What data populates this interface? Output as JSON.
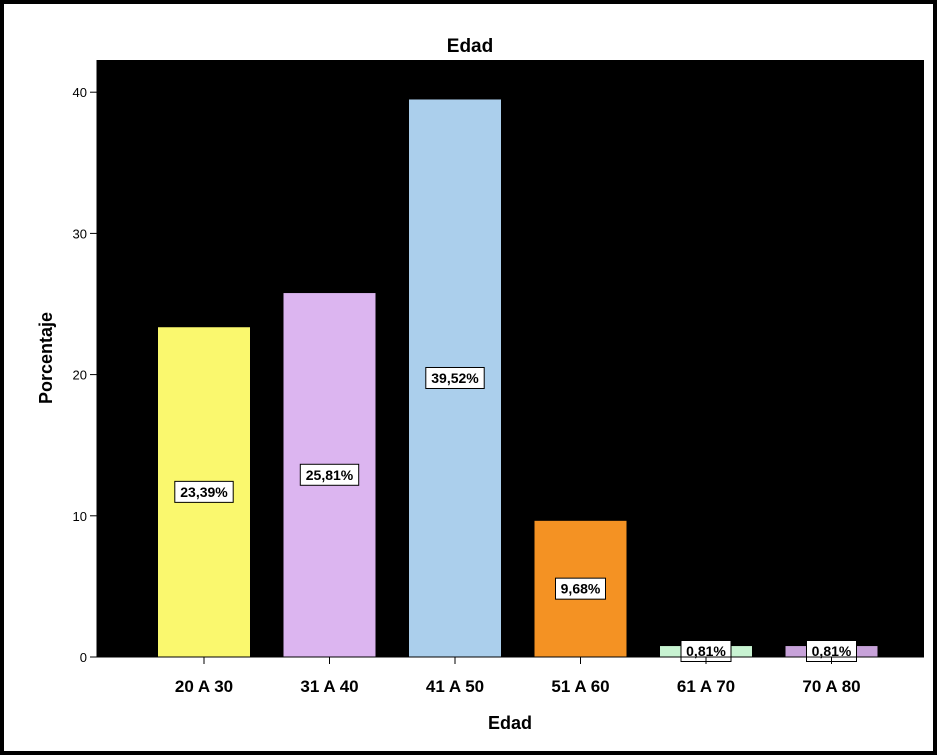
{
  "chart_data": {
    "type": "bar",
    "title": "Edad",
    "xlabel": "Edad",
    "ylabel": "Porcentaje",
    "ylim": [
      0,
      42
    ],
    "yticks": [
      0,
      10,
      20,
      30,
      40
    ],
    "categories": [
      "20 A 30",
      "31 A 40",
      "41 A 50",
      "51 A 60",
      "61 A 70",
      "70 A 80"
    ],
    "values": [
      23.39,
      25.81,
      39.52,
      9.68,
      0.81,
      0.81
    ],
    "data_labels": [
      "23,39%",
      "25,81%",
      "39,52%",
      "9,68%",
      "0,81%",
      "0,81%"
    ],
    "colors": [
      "#FAF86E",
      "#DCB5F0",
      "#ABCFEC",
      "#F49223",
      "#C8F3D2",
      "#C7A2D9"
    ],
    "plot_background": "#000000",
    "grid": false,
    "legend": "none"
  }
}
